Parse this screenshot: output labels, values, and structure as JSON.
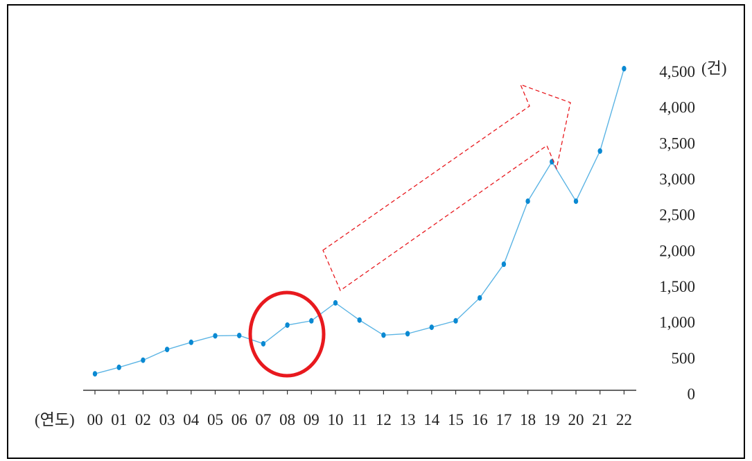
{
  "chart_data": {
    "type": "line",
    "x": [
      "00",
      "01",
      "02",
      "03",
      "04",
      "05",
      "06",
      "07",
      "08",
      "09",
      "10",
      "11",
      "12",
      "13",
      "14",
      "15",
      "16",
      "17",
      "18",
      "19",
      "20",
      "21",
      "22"
    ],
    "series": [
      {
        "values": [
          230,
          320,
          420,
          570,
          670,
          760,
          765,
          650,
          910,
          970,
          1220,
          980,
          770,
          790,
          880,
          970,
          1290,
          1760,
          2640,
          3190,
          2640,
          3340,
          4490
        ]
      }
    ],
    "x_label": "(연도)",
    "y_unit": "(건)",
    "y_ticks": [
      "0",
      "500",
      "1,000",
      "1,500",
      "2,000",
      "2,500",
      "3,000",
      "3,500",
      "4,000",
      "4,500"
    ],
    "ylim": [
      0,
      4500
    ],
    "highlight_x": "08",
    "grid": false,
    "y_axis_side": "right",
    "colors": {
      "line": "#5bb4e4",
      "marker": "#0a89d2",
      "circle": "#e8191e",
      "arrow": "#e8191e",
      "highlight_label": "#e8191e",
      "axis": "#333333"
    },
    "annotations": [
      "red-circle-around-08",
      "dashed-red-up-arrow"
    ]
  }
}
